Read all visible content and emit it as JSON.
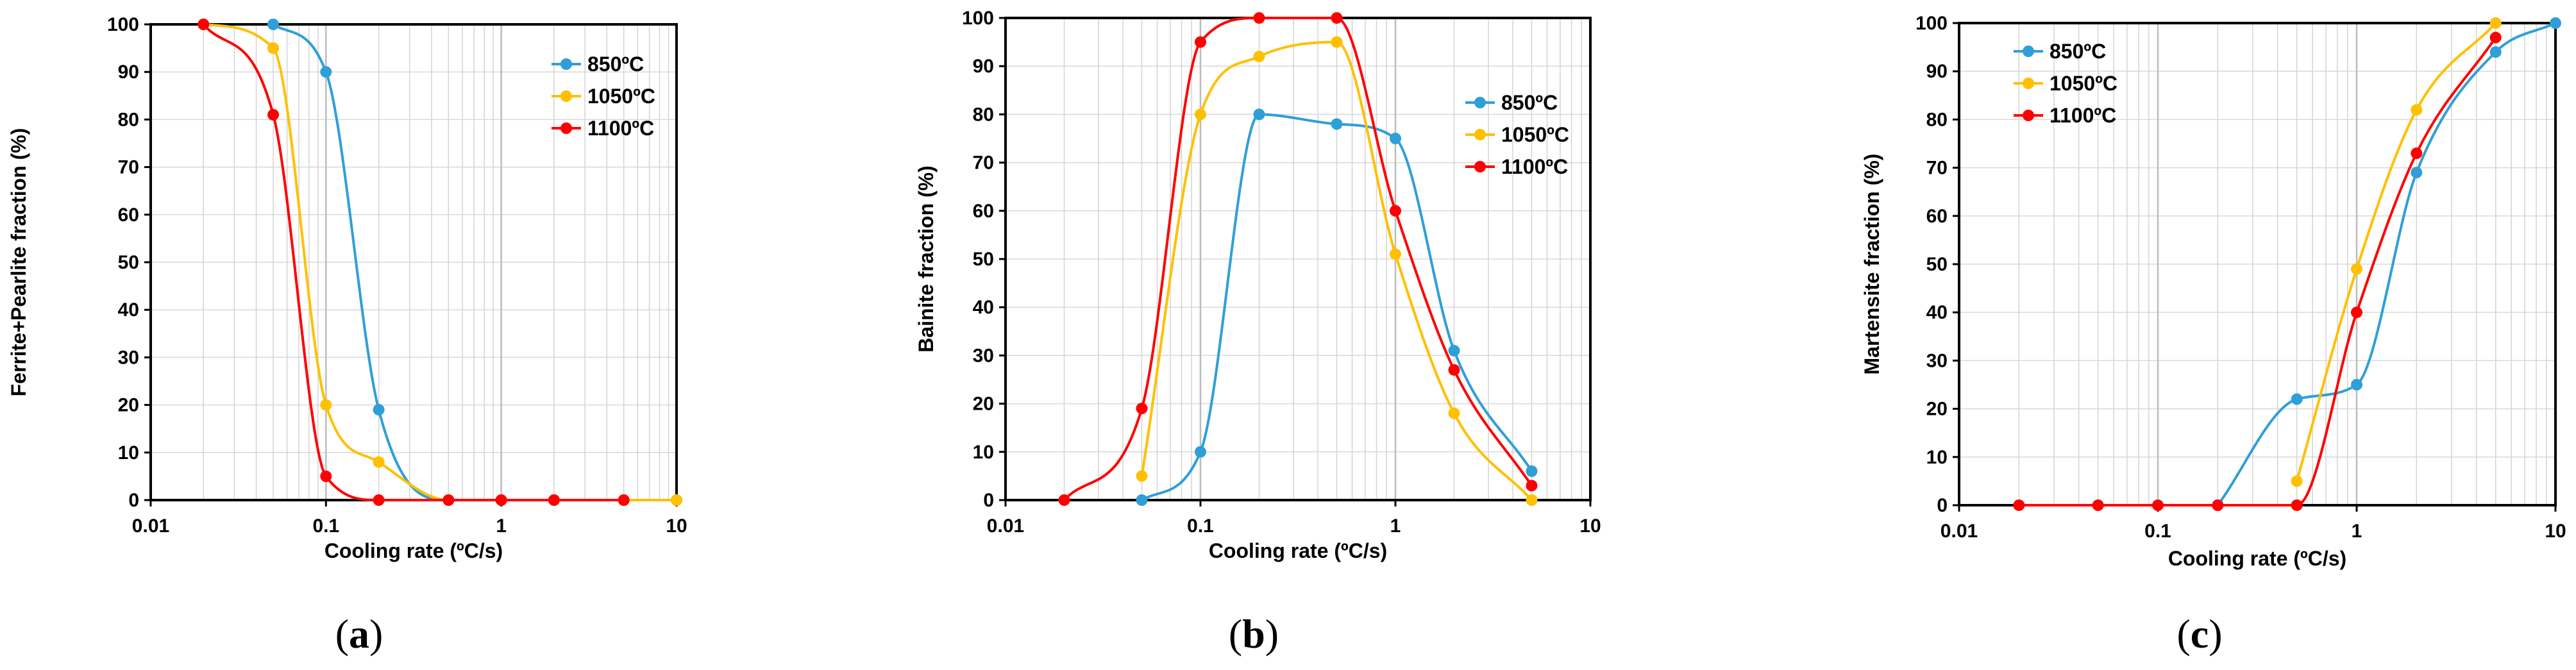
{
  "chart_data": [
    {
      "type": "line",
      "caption": "(a)",
      "caption_parts": [
        "(",
        "a",
        ")"
      ],
      "xlabel": "Cooling rate (ºC/s)",
      "ylabel": "Ferrite+Pearlite fraction (%)",
      "xscale": "log",
      "xlim": [
        0.01,
        10
      ],
      "ylim": [
        0,
        100
      ],
      "xticks": [
        0.01,
        0.1,
        1,
        10
      ],
      "xtick_labels": [
        "0.01",
        "0.1",
        "1",
        "10"
      ],
      "yticks": [
        0,
        10,
        20,
        30,
        40,
        50,
        60,
        70,
        80,
        90,
        100
      ],
      "legend_position": "top-right",
      "series": [
        {
          "name": "850ºC",
          "color": "#2f9fd8",
          "x": [
            0.05,
            0.1,
            0.2,
            0.5,
            1,
            2,
            5,
            10
          ],
          "y": [
            100,
            90,
            19,
            0,
            0,
            0,
            0,
            0
          ]
        },
        {
          "name": "1050ºC",
          "color": "#ffc000",
          "x": [
            0.02,
            0.05,
            0.1,
            0.2,
            0.5,
            1,
            2,
            5,
            10
          ],
          "y": [
            100,
            95,
            20,
            8,
            0,
            0,
            0,
            0,
            0
          ]
        },
        {
          "name": "1100ºC",
          "color": "#ff0000",
          "x": [
            0.02,
            0.05,
            0.1,
            0.2,
            0.5,
            1,
            2,
            5
          ],
          "y": [
            100,
            81,
            5,
            0,
            0,
            0,
            0,
            0
          ]
        }
      ]
    },
    {
      "type": "line",
      "caption": "(b)",
      "caption_parts": [
        "(",
        "b",
        ")"
      ],
      "xlabel": "Cooling rate (ºC/s)",
      "ylabel": "Bainite fraction (%)",
      "xscale": "log",
      "xlim": [
        0.01,
        10
      ],
      "ylim": [
        0,
        100
      ],
      "xticks": [
        0.01,
        0.1,
        1,
        10
      ],
      "xtick_labels": [
        "0.01",
        "0.1",
        "1",
        "10"
      ],
      "yticks": [
        0,
        10,
        20,
        30,
        40,
        50,
        60,
        70,
        80,
        90,
        100
      ],
      "legend_position": "top-right",
      "series": [
        {
          "name": "850ºC",
          "color": "#2f9fd8",
          "x": [
            0.05,
            0.1,
            0.2,
            0.5,
            1,
            2,
            5
          ],
          "y": [
            0,
            10,
            80,
            78,
            75,
            31,
            6
          ]
        },
        {
          "name": "1050ºC",
          "color": "#ffc000",
          "x": [
            0.05,
            0.1,
            0.2,
            0.5,
            1,
            2,
            5
          ],
          "y": [
            5,
            80,
            92,
            95,
            51,
            18,
            0
          ]
        },
        {
          "name": "1100ºC",
          "color": "#ff0000",
          "x": [
            0.02,
            0.05,
            0.1,
            0.2,
            0.5,
            1,
            2,
            5
          ],
          "y": [
            0,
            19,
            95,
            100,
            100,
            60,
            27,
            3
          ]
        }
      ]
    },
    {
      "type": "line",
      "caption": "(c)",
      "caption_parts": [
        "(",
        "c",
        ")"
      ],
      "xlabel": "Cooling rate (ºC/s)",
      "ylabel": "Martensite fraction (%)",
      "xscale": "log",
      "xlim": [
        0.01,
        10
      ],
      "ylim": [
        0,
        100
      ],
      "xticks": [
        0.01,
        0.1,
        1,
        10
      ],
      "xtick_labels": [
        "0.01",
        "0.1",
        "1",
        "10"
      ],
      "yticks": [
        0,
        10,
        20,
        30,
        40,
        50,
        60,
        70,
        80,
        90,
        100
      ],
      "legend_position": "top-left",
      "series": [
        {
          "name": "850ºC",
          "color": "#2f9fd8",
          "x": [
            0.2,
            0.5,
            1,
            2,
            5,
            10
          ],
          "y": [
            0,
            22,
            25,
            69,
            94,
            100
          ]
        },
        {
          "name": "1050ºC",
          "color": "#ffc000",
          "x": [
            0.5,
            1,
            2,
            5
          ],
          "y": [
            5,
            49,
            82,
            100
          ]
        },
        {
          "name": "1100ºC",
          "color": "#ff0000",
          "x": [
            0.02,
            0.05,
            0.1,
            0.2,
            0.5,
            1,
            2,
            5
          ],
          "y": [
            0,
            0,
            0,
            0,
            0,
            40,
            73,
            97
          ]
        }
      ]
    }
  ]
}
